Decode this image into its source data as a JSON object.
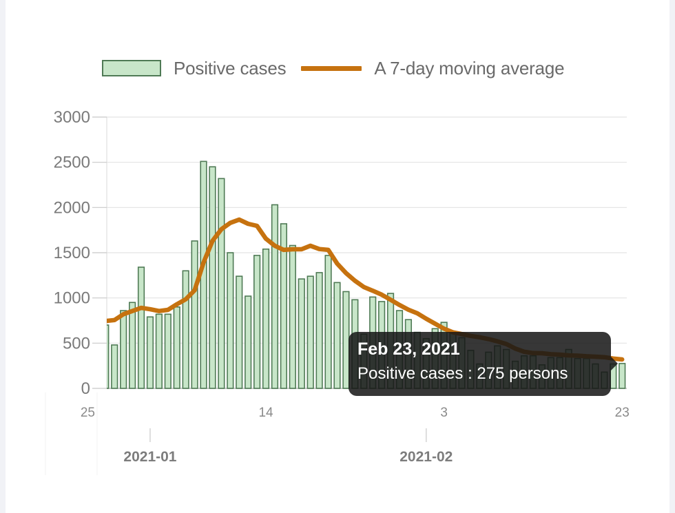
{
  "chart_data": {
    "type": "bar",
    "title": "",
    "xlabel": "",
    "ylabel": "",
    "ylim": [
      0,
      3000
    ],
    "yticks": [
      "0",
      "500",
      "1000",
      "1500",
      "2000",
      "2500",
      "3000"
    ],
    "ytick_values": [
      0,
      500,
      1000,
      1500,
      2000,
      2500,
      3000
    ],
    "grid": true,
    "legend_position": "top-center",
    "x_start_date": "2020-12-27",
    "x_tick_labels": [
      {
        "label": "25",
        "day_offset": -2
      },
      {
        "label": "14",
        "day_offset": 18
      },
      {
        "label": "3",
        "day_offset": 38
      },
      {
        "label": "23",
        "day_offset": 58
      }
    ],
    "month_labels": [
      {
        "label": "2021-01",
        "day_offset": 5
      },
      {
        "label": "2021-02",
        "day_offset": 36
      }
    ],
    "categories": [
      "Dec 27",
      "Dec 28",
      "Dec 29",
      "Dec 30",
      "Dec 31",
      "Jan 1",
      "Jan 2",
      "Jan 3",
      "Jan 4",
      "Jan 5",
      "Jan 6",
      "Jan 7",
      "Jan 8",
      "Jan 9",
      "Jan 10",
      "Jan 11",
      "Jan 12",
      "Jan 13",
      "Jan 14",
      "Jan 15",
      "Jan 16",
      "Jan 17",
      "Jan 18",
      "Jan 19",
      "Jan 20",
      "Jan 21",
      "Jan 22",
      "Jan 23",
      "Jan 24",
      "Jan 25",
      "Jan 26",
      "Jan 27",
      "Jan 28",
      "Jan 29",
      "Jan 30",
      "Jan 31",
      "Feb 1",
      "Feb 2",
      "Feb 3",
      "Feb 4",
      "Feb 5",
      "Feb 6",
      "Feb 7",
      "Feb 8",
      "Feb 9",
      "Feb 10",
      "Feb 11",
      "Feb 12",
      "Feb 13",
      "Feb 14",
      "Feb 15",
      "Feb 16",
      "Feb 17",
      "Feb 18",
      "Feb 19",
      "Feb 20",
      "Feb 21",
      "Feb 22",
      "Feb 23"
    ],
    "series": [
      {
        "name": "Positive cases",
        "type": "bar",
        "color": "#c8e6c9",
        "stroke": "#4f7a55",
        "values": [
          700,
          480,
          860,
          950,
          1340,
          790,
          820,
          820,
          900,
          1300,
          1630,
          2510,
          2450,
          2320,
          1500,
          1240,
          1020,
          1470,
          1540,
          2030,
          1820,
          1580,
          1210,
          1240,
          1280,
          1470,
          1170,
          1070,
          980,
          600,
          1010,
          960,
          1050,
          860,
          760,
          620,
          550,
          660,
          730,
          620,
          560,
          420,
          270,
          400,
          470,
          430,
          300,
          360,
          360,
          260,
          340,
          340,
          430,
          330,
          330,
          270,
          180,
          270,
          275
        ]
      },
      {
        "name": "A 7-day moving average",
        "type": "line",
        "color": "#c6720f",
        "values": [
          745,
          755,
          820,
          855,
          890,
          875,
          855,
          868,
          930,
          985,
          1085,
          1390,
          1630,
          1760,
          1830,
          1866,
          1820,
          1797,
          1655,
          1577,
          1531,
          1538,
          1538,
          1577,
          1540,
          1531,
          1380,
          1275,
          1190,
          1120,
          1080,
          1036,
          980,
          922,
          870,
          830,
          770,
          715,
          660,
          620,
          600,
          580,
          565,
          545,
          520,
          490,
          440,
          405,
          390,
          388,
          378,
          373,
          365,
          362,
          355,
          350,
          345,
          330,
          320
        ]
      }
    ]
  },
  "legend": {
    "bar_label": "Positive cases",
    "line_label": "A 7-day moving average"
  },
  "tooltip": {
    "title": "Feb 23, 2021",
    "body": "Positive cases : 275  persons",
    "day_index": 58
  }
}
